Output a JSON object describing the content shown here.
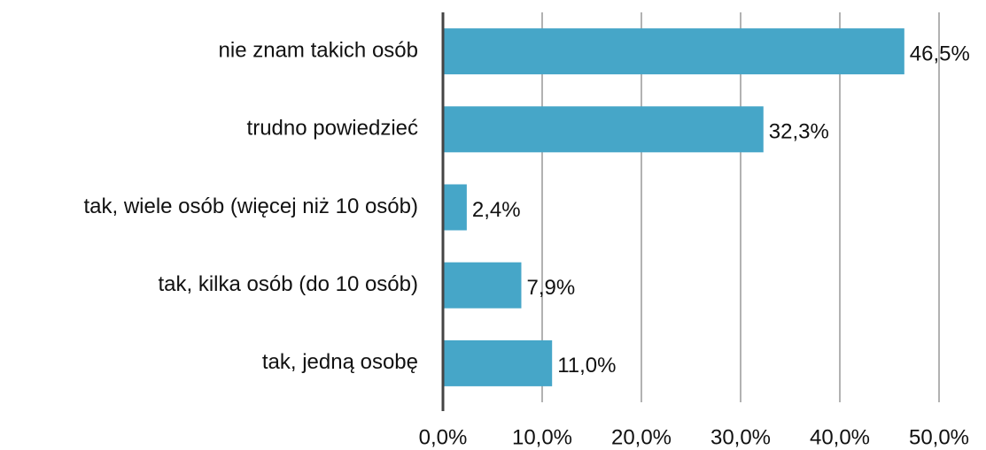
{
  "chart_data": {
    "type": "barh",
    "categories": [
      "nie znam takich osób",
      "trudno powiedzieć",
      "tak, wiele osób (więcej niż 10 osób)",
      "tak, kilka osób (do 10 osób)",
      "tak, jedną osobę"
    ],
    "values": [
      46.5,
      32.3,
      2.4,
      7.9,
      11.0
    ],
    "value_labels": [
      "46,5%",
      "32,3%",
      "2,4%",
      "7,9%",
      "11,0%"
    ],
    "color": "#46a6c8",
    "xlim": [
      0,
      50
    ],
    "xticks": [
      {
        "value": 0,
        "label": "0,0%"
      },
      {
        "value": 10,
        "label": "10,0%"
      },
      {
        "value": 20,
        "label": "20,0%"
      },
      {
        "value": 30,
        "label": "30,0%"
      },
      {
        "value": 40,
        "label": "40,0%"
      },
      {
        "value": 50,
        "label": "50,0%"
      }
    ],
    "grid": true
  }
}
